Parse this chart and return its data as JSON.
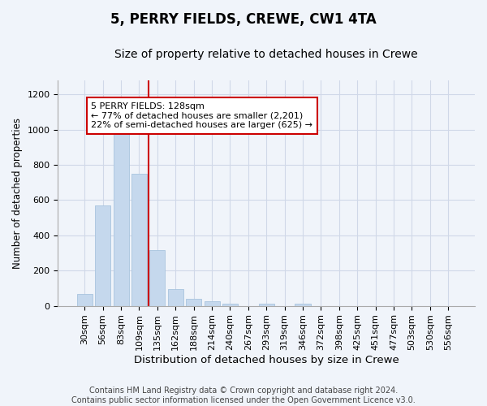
{
  "title": "5, PERRY FIELDS, CREWE, CW1 4TA",
  "subtitle": "Size of property relative to detached houses in Crewe",
  "xlabel": "Distribution of detached houses by size in Crewe",
  "ylabel": "Number of detached properties",
  "categories": [
    "30sqm",
    "56sqm",
    "83sqm",
    "109sqm",
    "135sqm",
    "162sqm",
    "188sqm",
    "214sqm",
    "240sqm",
    "267sqm",
    "293sqm",
    "319sqm",
    "346sqm",
    "372sqm",
    "398sqm",
    "425sqm",
    "451sqm",
    "477sqm",
    "503sqm",
    "530sqm",
    "556sqm"
  ],
  "values": [
    65,
    570,
    1005,
    748,
    315,
    97,
    38,
    25,
    12,
    0,
    12,
    0,
    12,
    0,
    0,
    0,
    0,
    0,
    0,
    0,
    0
  ],
  "bar_color": "#c5d8ed",
  "bar_edge_color": "#a8c4de",
  "vline_color": "#cc0000",
  "annotation_text": "5 PERRY FIELDS: 128sqm\n← 77% of detached houses are smaller (2,201)\n22% of semi-detached houses are larger (625) →",
  "annotation_box_color": "#ffffff",
  "annotation_box_edge": "#cc0000",
  "annotation_fontsize": 8,
  "ylim": [
    0,
    1280
  ],
  "yticks": [
    0,
    200,
    400,
    600,
    800,
    1000,
    1200
  ],
  "title_fontsize": 12,
  "subtitle_fontsize": 10,
  "xlabel_fontsize": 9.5,
  "ylabel_fontsize": 8.5,
  "tick_fontsize": 8,
  "footer": "Contains HM Land Registry data © Crown copyright and database right 2024.\nContains public sector information licensed under the Open Government Licence v3.0.",
  "footer_fontsize": 7,
  "bg_color": "#f0f4fa",
  "grid_color": "#d0d8e8"
}
